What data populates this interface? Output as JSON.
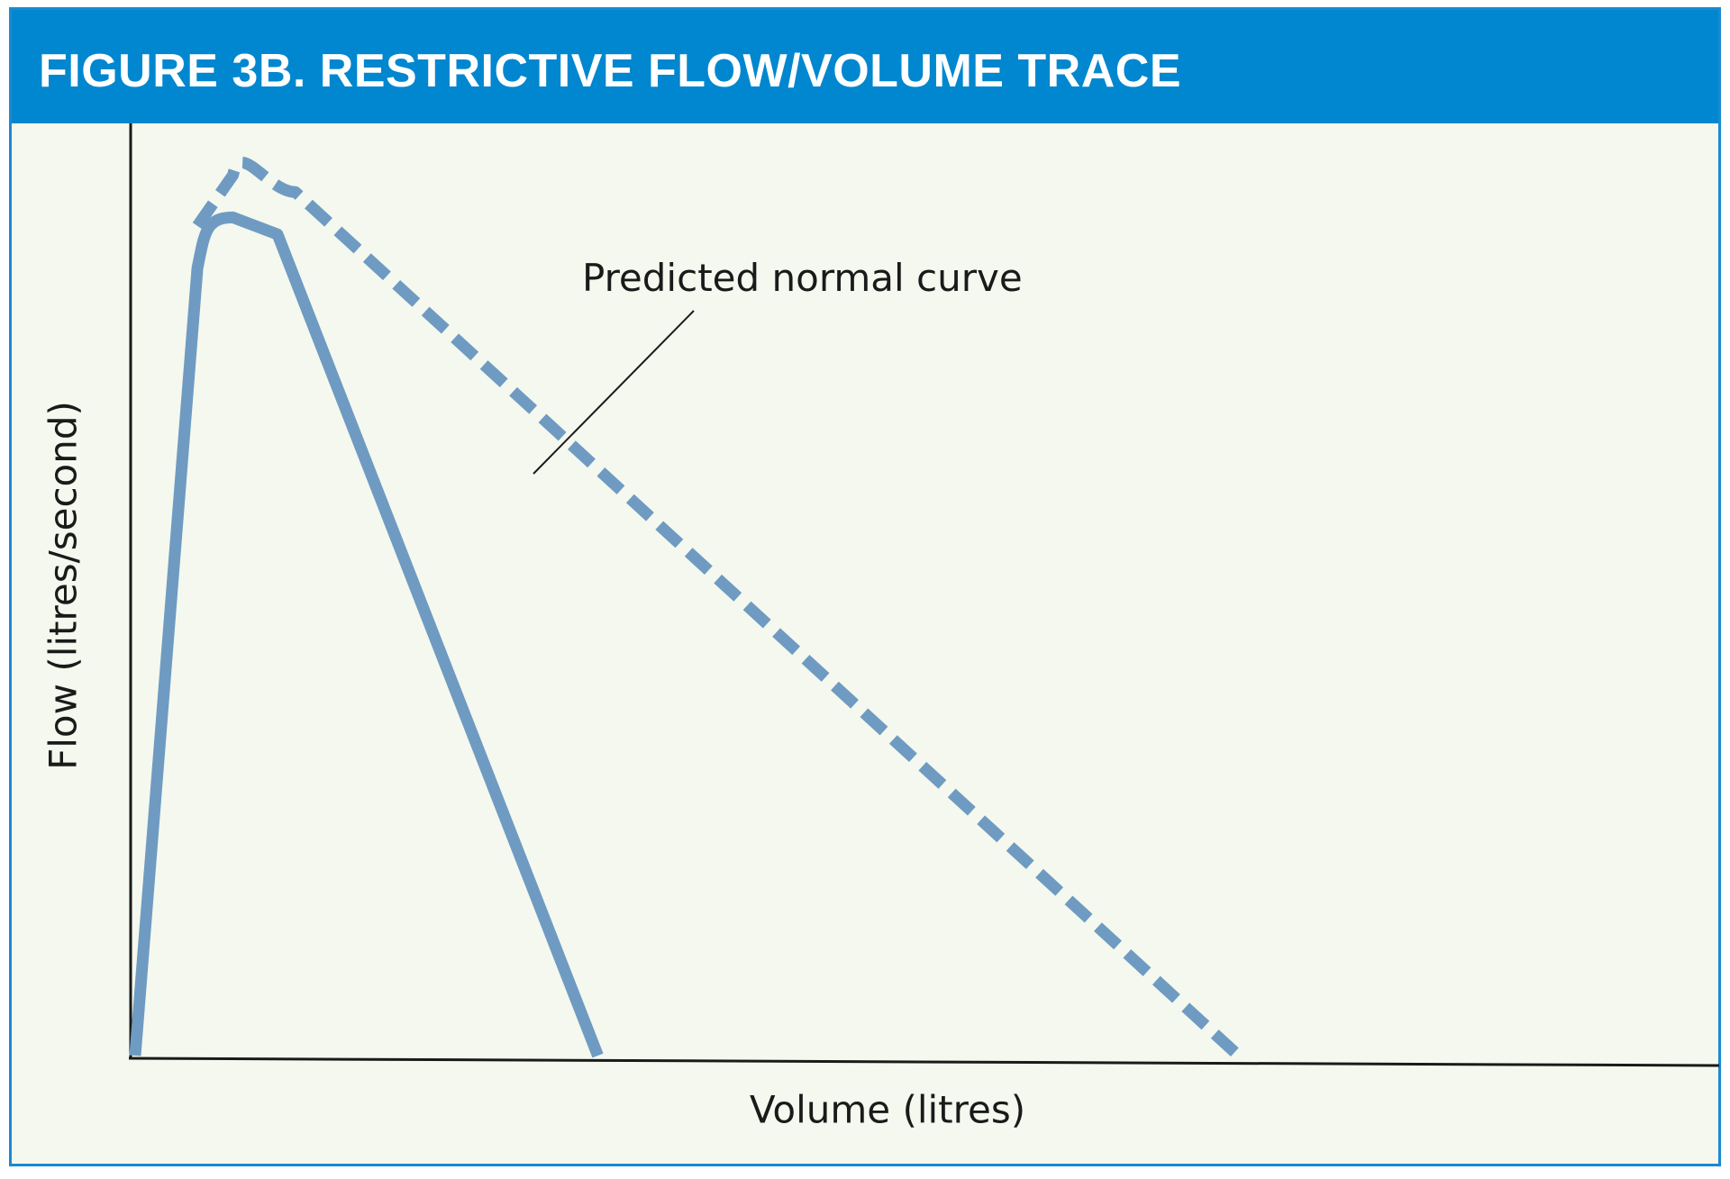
{
  "figure": {
    "title": "FIGURE 3B. RESTRICTIVE FLOW/VOLUME TRACE"
  },
  "colors": {
    "title_bar": "#0087cf",
    "frame_border": "#1a8ad2",
    "plot_background": "#f4f8ee",
    "curve": "#6f9bc2",
    "axis": "#1a1a1a"
  },
  "chart_data": {
    "type": "line",
    "title": "FIGURE 3B. RESTRICTIVE FLOW/VOLUME TRACE",
    "xlabel": "Volume (litres)",
    "ylabel": "Flow (litres/second)",
    "grid": false,
    "ticks": false,
    "xlim": [
      0,
      1
    ],
    "ylim": [
      0,
      1
    ],
    "annotations": [
      {
        "text": "Predicted normal curve",
        "target_series": "predicted"
      }
    ],
    "series": [
      {
        "id": "restrictive",
        "style": "solid",
        "points": [
          [
            0.0,
            0.0
          ],
          [
            0.035,
            0.93
          ],
          [
            0.055,
            0.99
          ],
          [
            0.08,
            0.97
          ],
          [
            0.26,
            0.0
          ]
        ]
      },
      {
        "id": "predicted",
        "style": "dashed",
        "points": [
          [
            0.035,
            0.98
          ],
          [
            0.055,
            1.04
          ],
          [
            0.09,
            1.02
          ],
          [
            0.62,
            0.0
          ]
        ]
      }
    ]
  }
}
